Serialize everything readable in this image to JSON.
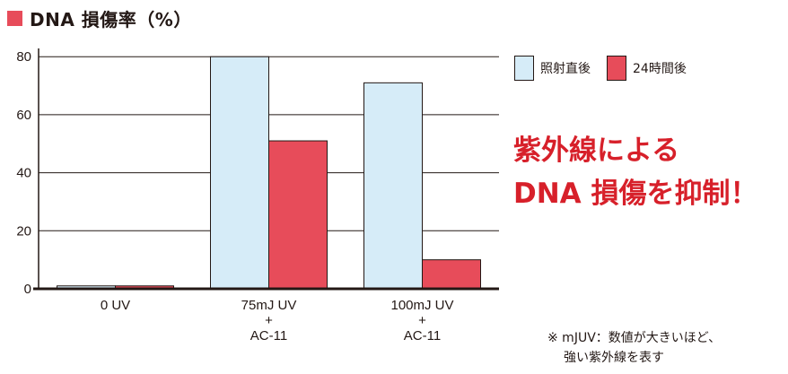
{
  "header": {
    "title": "DNA 損傷率（%）"
  },
  "colors": {
    "series_1": "#d6ecf8",
    "series_2": "#e74c5a",
    "title_square": "#e74c5a",
    "headline": "#d7202a"
  },
  "chart_data": {
    "type": "bar",
    "title": "DNA 損傷率（%）",
    "xlabel": "",
    "ylabel": "",
    "ylim": [
      0,
      81
    ],
    "yticks": [
      0,
      20,
      40,
      60,
      80
    ],
    "grid": true,
    "legend_position": "top-right",
    "categories": [
      [
        "0 UV"
      ],
      [
        "75mJ UV",
        "+",
        "AC-11"
      ],
      [
        "100mJ UV",
        "+",
        "AC-11"
      ]
    ],
    "series": [
      {
        "name": "照射直後",
        "values": [
          1,
          80,
          71
        ]
      },
      {
        "name": "24時間後",
        "values": [
          1,
          51,
          10
        ]
      }
    ]
  },
  "legend": {
    "items": [
      {
        "label": "照射直後"
      },
      {
        "label": "24時間後"
      }
    ]
  },
  "headline": {
    "line1": "紫外線による",
    "line2": "DNA 損傷を抑制！"
  },
  "note": {
    "line1": "※ mJUV：数値が大きいほど、",
    "line2": "強い紫外線を表す"
  }
}
